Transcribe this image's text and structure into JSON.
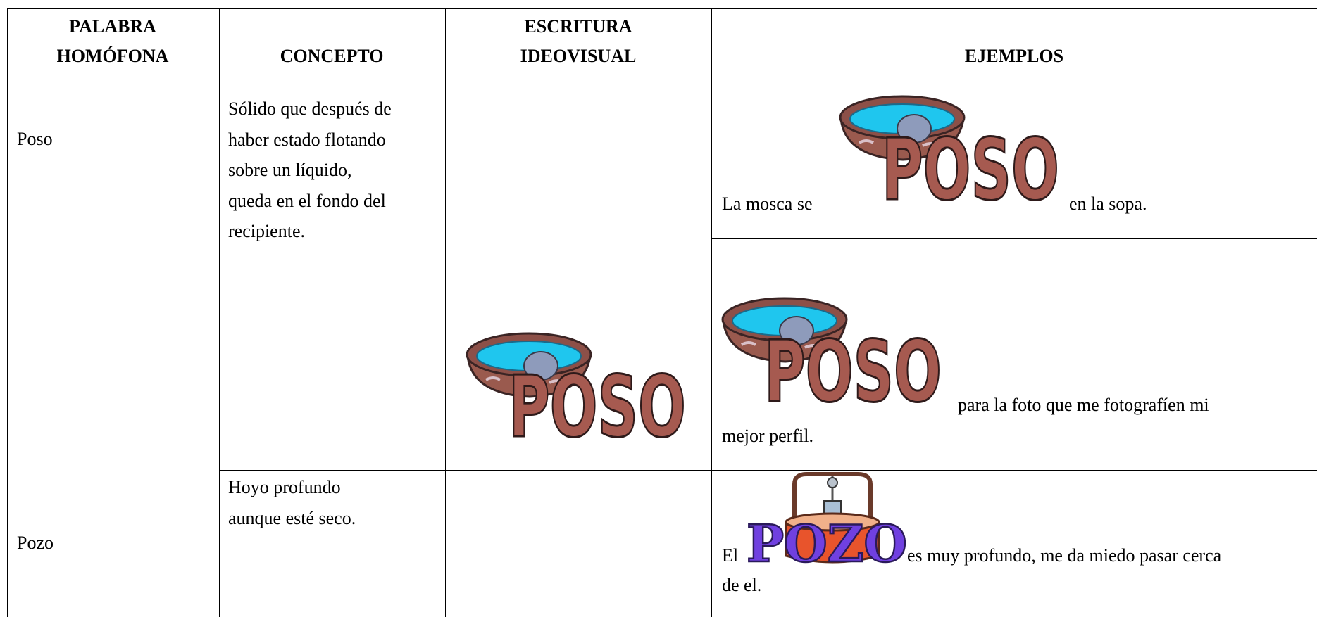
{
  "table": {
    "header": [
      {
        "lines": [
          "PALABRA",
          "HOMÓFONA"
        ]
      },
      {
        "lines": [
          "CONCEPTO"
        ]
      },
      {
        "lines": [
          "ESCRITURA",
          "IDEOVISUAL"
        ]
      },
      {
        "lines": [
          "EJEMPLOS"
        ]
      }
    ],
    "rows": [
      {
        "word": "Poso",
        "concept": [
          "Sólido que después de",
          "haber estado flotando",
          "sobre un líquido,",
          "queda en el fondo del",
          "recipiente."
        ],
        "ideovisual": "POSO",
        "examples": [
          {
            "before": "La mosca se",
            "image": "POSO",
            "after": [
              "en la sopa."
            ]
          },
          {
            "image": "POSO",
            "after": [
              "para la foto que me fotografíen mi",
              "mejor perfil."
            ]
          }
        ]
      },
      {
        "word": "Pozo",
        "concept": [
          "Hoyo profundo",
          "aunque esté seco."
        ],
        "examples": [
          {
            "before": "El",
            "image": "POZO",
            "after": [
              "es muy profundo, me da miedo pasar cerca",
              "de el."
            ]
          }
        ]
      }
    ]
  }
}
